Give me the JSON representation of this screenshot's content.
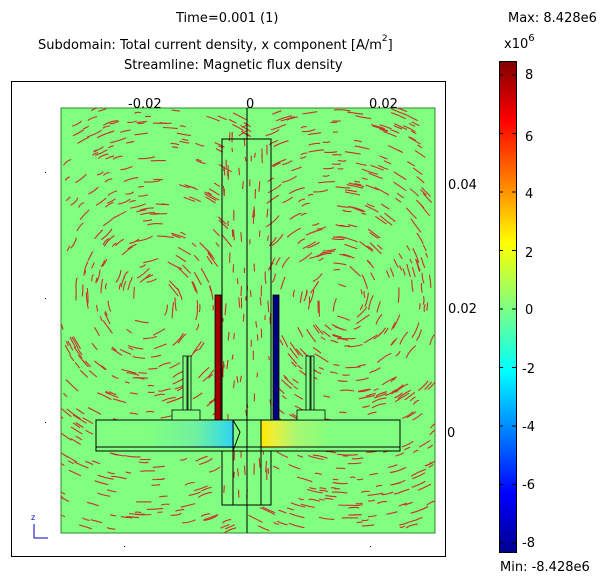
{
  "header": {
    "time": "Time=0.001 (1)",
    "subdomain": "Subdomain: Total current density, x component [A/m",
    "subdomain_sup": "2",
    "subdomain_end": "]",
    "streamline": "Streamline: Magnetic flux density"
  },
  "colorbar": {
    "max_label": "Max: 8.428e6",
    "min_label": "Min: -8.428e6",
    "multiplier": "x10",
    "exponent": "6",
    "ticks": [
      "8",
      "6",
      "4",
      "2",
      "0",
      "-2",
      "-4",
      "-6",
      "-8"
    ],
    "colors": [
      "#00008f",
      "#0000ff",
      "#00ffff",
      "#7fff7f",
      "#ffff00",
      "#ff0000",
      "#800000"
    ]
  },
  "chart_data": {
    "type": "heatmap",
    "title": "Time=0.001 (1)",
    "subtitle": "Subdomain: Total current density, x component [A/m2]; Streamline: Magnetic flux density",
    "x_ticks": [
      "-0.02",
      "0",
      "0.02"
    ],
    "y_ticks": [
      "0.04",
      "0.02",
      "0"
    ],
    "colorbar_range": [
      -8428000.0,
      8428000.0
    ],
    "colorbar_ticks": [
      8,
      6,
      4,
      2,
      0,
      -2,
      -4,
      -6,
      -8
    ],
    "field_background_value": 0,
    "left_conductor_value": 8400000.0,
    "right_conductor_value": -8400000.0,
    "plate_left_zone_value": -1500000.0,
    "plate_right_zone_value": 2000000.0,
    "streamline_color": "#c8322a",
    "background_color": "#80ff80",
    "axis_indicator_label": "z"
  }
}
